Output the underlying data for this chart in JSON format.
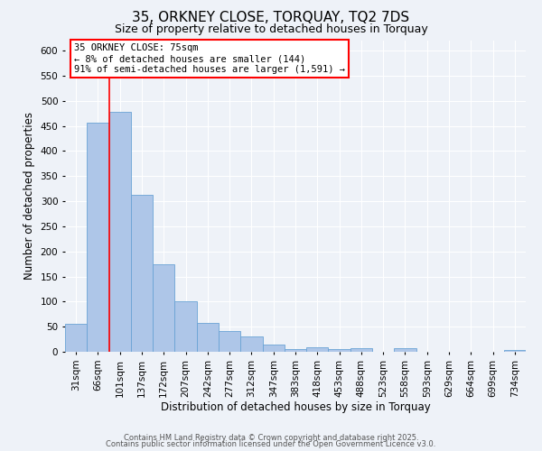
{
  "title": "35, ORKNEY CLOSE, TORQUAY, TQ2 7DS",
  "subtitle": "Size of property relative to detached houses in Torquay",
  "xlabel": "Distribution of detached houses by size in Torquay",
  "ylabel": "Number of detached properties",
  "bar_labels": [
    "31sqm",
    "66sqm",
    "101sqm",
    "137sqm",
    "172sqm",
    "207sqm",
    "242sqm",
    "277sqm",
    "312sqm",
    "347sqm",
    "383sqm",
    "418sqm",
    "453sqm",
    "488sqm",
    "523sqm",
    "558sqm",
    "593sqm",
    "629sqm",
    "664sqm",
    "699sqm",
    "734sqm"
  ],
  "bar_heights": [
    55,
    457,
    478,
    312,
    175,
    100,
    58,
    42,
    31,
    15,
    6,
    9,
    5,
    8,
    0,
    7,
    0,
    0,
    0,
    0,
    3
  ],
  "bar_color": "#aec6e8",
  "bar_edge_color": "#6aa3d5",
  "red_line_x": 1.5,
  "ylim": [
    0,
    620
  ],
  "yticks": [
    0,
    50,
    100,
    150,
    200,
    250,
    300,
    350,
    400,
    450,
    500,
    550,
    600
  ],
  "annotation_text_line1": "35 ORKNEY CLOSE: 75sqm",
  "annotation_text_line2": "← 8% of detached houses are smaller (144)",
  "annotation_text_line3": "91% of semi-detached houses are larger (1,591) →",
  "footer1": "Contains HM Land Registry data © Crown copyright and database right 2025.",
  "footer2": "Contains public sector information licensed under the Open Government Licence v3.0.",
  "background_color": "#eef2f8",
  "plot_bg_color": "#eef2f8",
  "grid_color": "#ffffff",
  "title_fontsize": 11,
  "subtitle_fontsize": 9,
  "axis_label_fontsize": 8.5,
  "tick_fontsize": 7.5,
  "footer_fontsize": 6,
  "annotation_fontsize": 7.5
}
